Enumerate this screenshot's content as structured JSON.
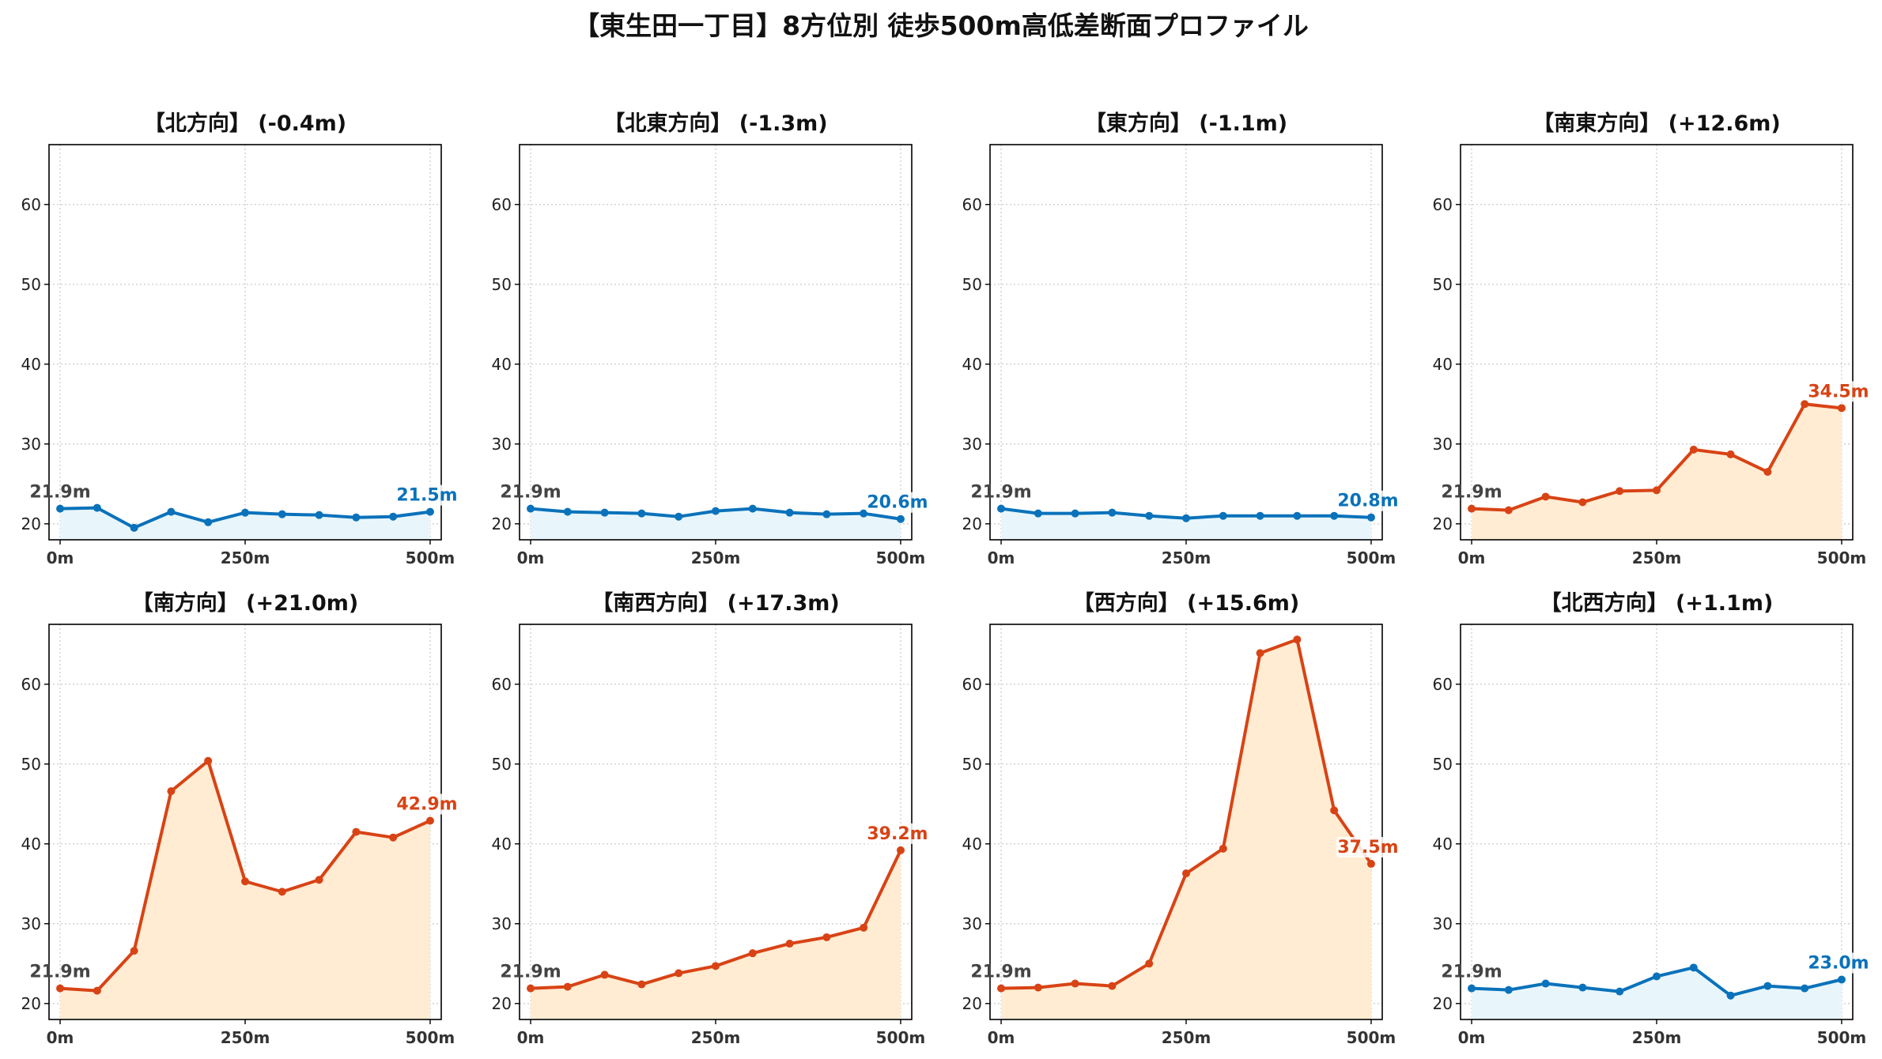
{
  "title": "【東生田一丁目】8方位別 徒歩500m高低差断面プロファイル",
  "chart_data": [
    {
      "type": "line",
      "title": "【北方向】 (-0.4m)",
      "trend": "down",
      "x": [
        0,
        50,
        100,
        150,
        200,
        250,
        300,
        350,
        400,
        450,
        500
      ],
      "y": [
        21.9,
        22.0,
        19.5,
        21.5,
        20.2,
        21.4,
        21.2,
        21.1,
        20.8,
        20.9,
        21.5
      ],
      "xtick_labels": [
        "0m",
        "250m",
        "500m"
      ],
      "yticks": [
        20,
        30,
        40,
        50,
        60
      ],
      "start_label": "21.9m",
      "end_label": "21.5m",
      "xlim": [
        -15,
        515
      ],
      "ylim": [
        18,
        67.5
      ]
    },
    {
      "type": "line",
      "title": "【北東方向】 (-1.3m)",
      "trend": "down",
      "x": [
        0,
        50,
        100,
        150,
        200,
        250,
        300,
        350,
        400,
        450,
        500
      ],
      "y": [
        21.9,
        21.5,
        21.4,
        21.3,
        20.9,
        21.6,
        21.9,
        21.4,
        21.2,
        21.3,
        20.6
      ],
      "xtick_labels": [
        "0m",
        "250m",
        "500m"
      ],
      "yticks": [
        20,
        30,
        40,
        50,
        60
      ],
      "start_label": "21.9m",
      "end_label": "20.6m",
      "xlim": [
        -15,
        515
      ],
      "ylim": [
        18,
        67.5
      ]
    },
    {
      "type": "line",
      "title": "【東方向】 (-1.1m)",
      "trend": "down",
      "x": [
        0,
        50,
        100,
        150,
        200,
        250,
        300,
        350,
        400,
        450,
        500
      ],
      "y": [
        21.9,
        21.3,
        21.3,
        21.4,
        21.0,
        20.7,
        21.0,
        21.0,
        21.0,
        21.0,
        20.8
      ],
      "xtick_labels": [
        "0m",
        "250m",
        "500m"
      ],
      "yticks": [
        20,
        30,
        40,
        50,
        60
      ],
      "start_label": "21.9m",
      "end_label": "20.8m",
      "xlim": [
        -15,
        515
      ],
      "ylim": [
        18,
        67.5
      ]
    },
    {
      "type": "line",
      "title": "【南東方向】 (+12.6m)",
      "trend": "up",
      "x": [
        0,
        50,
        100,
        150,
        200,
        250,
        300,
        350,
        400,
        450,
        500
      ],
      "y": [
        21.9,
        21.7,
        23.4,
        22.7,
        24.1,
        24.2,
        29.3,
        28.7,
        26.5,
        35.0,
        34.5
      ],
      "xtick_labels": [
        "0m",
        "250m",
        "500m"
      ],
      "yticks": [
        20,
        30,
        40,
        50,
        60
      ],
      "start_label": "21.9m",
      "end_label": "34.5m",
      "xlim": [
        -15,
        515
      ],
      "ylim": [
        18,
        67.5
      ]
    },
    {
      "type": "line",
      "title": "【南方向】 (+21.0m)",
      "trend": "up",
      "x": [
        0,
        50,
        100,
        150,
        200,
        250,
        300,
        350,
        400,
        450,
        500
      ],
      "y": [
        21.9,
        21.6,
        26.6,
        46.6,
        50.4,
        35.3,
        34.0,
        35.5,
        41.5,
        40.8,
        42.9
      ],
      "xtick_labels": [
        "0m",
        "250m",
        "500m"
      ],
      "yticks": [
        20,
        30,
        40,
        50,
        60
      ],
      "start_label": "21.9m",
      "end_label": "42.9m",
      "xlim": [
        -15,
        515
      ],
      "ylim": [
        18,
        67.5
      ]
    },
    {
      "type": "line",
      "title": "【南西方向】 (+17.3m)",
      "trend": "up",
      "x": [
        0,
        50,
        100,
        150,
        200,
        250,
        300,
        350,
        400,
        450,
        500
      ],
      "y": [
        21.9,
        22.1,
        23.6,
        22.4,
        23.8,
        24.7,
        26.3,
        27.5,
        28.3,
        29.5,
        39.2
      ],
      "xtick_labels": [
        "0m",
        "250m",
        "500m"
      ],
      "yticks": [
        20,
        30,
        40,
        50,
        60
      ],
      "start_label": "21.9m",
      "end_label": "39.2m",
      "xlim": [
        -15,
        515
      ],
      "ylim": [
        18,
        67.5
      ]
    },
    {
      "type": "line",
      "title": "【西方向】 (+15.6m)",
      "trend": "up",
      "x": [
        0,
        50,
        100,
        150,
        200,
        250,
        300,
        350,
        400,
        450,
        500
      ],
      "y": [
        21.9,
        22.0,
        22.5,
        22.2,
        25.0,
        36.3,
        39.4,
        63.9,
        65.6,
        44.2,
        37.5
      ],
      "xtick_labels": [
        "0m",
        "250m",
        "500m"
      ],
      "yticks": [
        20,
        30,
        40,
        50,
        60
      ],
      "start_label": "21.9m",
      "end_label": "37.5m",
      "xlim": [
        -15,
        515
      ],
      "ylim": [
        18,
        67.5
      ]
    },
    {
      "type": "line",
      "title": "【北西方向】 (+1.1m)",
      "trend": "down",
      "x": [
        0,
        50,
        100,
        150,
        200,
        250,
        300,
        350,
        400,
        450,
        500
      ],
      "y": [
        21.9,
        21.7,
        22.5,
        22.0,
        21.5,
        23.4,
        24.5,
        21.0,
        22.2,
        21.9,
        23.0
      ],
      "xtick_labels": [
        "0m",
        "250m",
        "500m"
      ],
      "yticks": [
        20,
        30,
        40,
        50,
        60
      ],
      "start_label": "21.9m",
      "end_label": "23.0m",
      "xlim": [
        -15,
        515
      ],
      "ylim": [
        18,
        67.5
      ]
    }
  ],
  "colors": {
    "up_line": "#d84315",
    "up_fill": "#ffecd2",
    "down_line": "#0a72ba",
    "down_fill": "#e8f6fb",
    "grid": "#cccccc",
    "axis": "#000000"
  }
}
